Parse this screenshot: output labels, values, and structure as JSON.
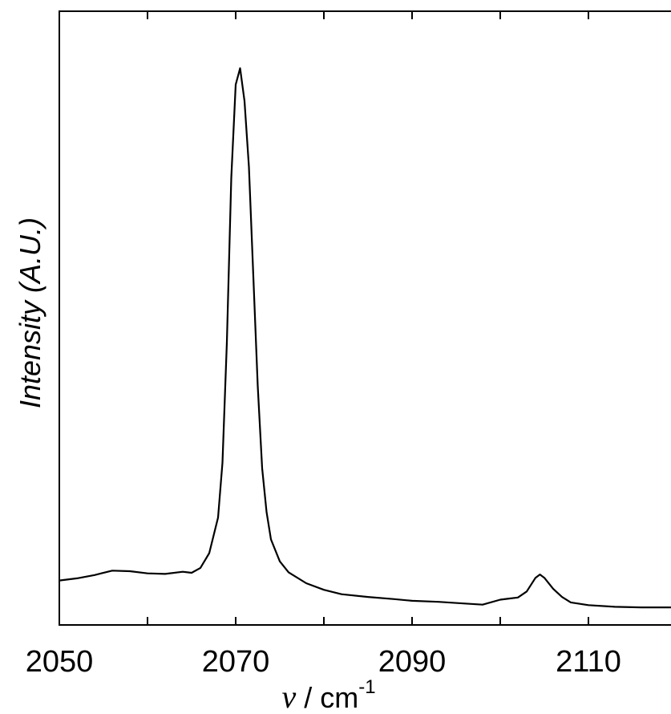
{
  "chart_data": {
    "type": "line",
    "title": "",
    "xlabel": {
      "symbol": "ν",
      "unit": " / cm",
      "exponent": "-1"
    },
    "ylabel": "Intensity (A.U.)",
    "xlim": [
      2050,
      2120
    ],
    "ylim": [
      0,
      1
    ],
    "x_ticks": [
      2050,
      2060,
      2070,
      2080,
      2090,
      2100,
      2110,
      2120
    ],
    "x_tick_labels": [
      "2050",
      "2070",
      "2090",
      "2110"
    ],
    "y_tick_labels": [],
    "grid": false,
    "legend": "none",
    "line_color": "#000000",
    "series": [
      {
        "x": [
          2050,
          2052,
          2054,
          2056,
          2058,
          2060,
          2062,
          2064,
          2065,
          2066,
          2067,
          2068,
          2068.5,
          2069,
          2069.5,
          2070,
          2070.5,
          2071,
          2071.5,
          2072,
          2072.5,
          2073,
          2073.5,
          2074,
          2075,
          2076,
          2078,
          2080,
          2082,
          2085,
          2088,
          2090,
          2093,
          2096,
          2098,
          2100,
          2101,
          2102,
          2103,
          2104,
          2104.5,
          2105,
          2106,
          2107,
          2108,
          2110,
          2113,
          2116,
          2120
        ],
        "y": [
          0.065,
          0.069,
          0.075,
          0.083,
          0.082,
          0.078,
          0.077,
          0.081,
          0.079,
          0.088,
          0.115,
          0.18,
          0.28,
          0.5,
          0.8,
          0.97,
          1.0,
          0.94,
          0.82,
          0.62,
          0.42,
          0.27,
          0.19,
          0.14,
          0.1,
          0.08,
          0.06,
          0.048,
          0.04,
          0.035,
          0.031,
          0.028,
          0.026,
          0.023,
          0.021,
          0.03,
          0.032,
          0.034,
          0.045,
          0.07,
          0.076,
          0.07,
          0.05,
          0.035,
          0.025,
          0.02,
          0.017,
          0.016,
          0.016
        ]
      }
    ]
  }
}
